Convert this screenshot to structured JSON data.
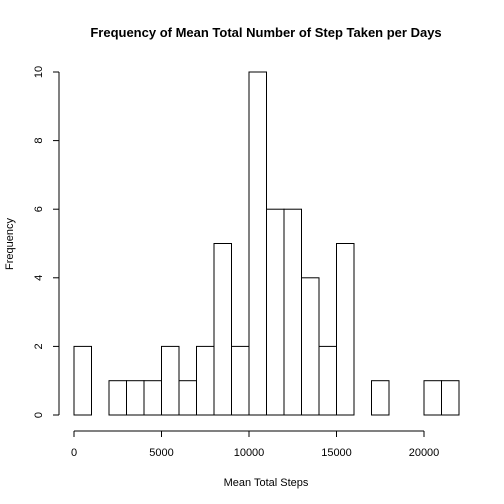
{
  "chart_data": {
    "type": "bar",
    "title": "Frequency of Mean Total Number of Step Taken per Days",
    "xlabel": "Mean Total Steps",
    "ylabel": "Frequency",
    "bin_width": 1000,
    "bins": [
      {
        "x0": 0,
        "x1": 1000,
        "count": 2
      },
      {
        "x0": 1000,
        "x1": 2000,
        "count": 0
      },
      {
        "x0": 2000,
        "x1": 3000,
        "count": 1
      },
      {
        "x0": 3000,
        "x1": 4000,
        "count": 1
      },
      {
        "x0": 4000,
        "x1": 5000,
        "count": 1
      },
      {
        "x0": 5000,
        "x1": 6000,
        "count": 2
      },
      {
        "x0": 6000,
        "x1": 7000,
        "count": 1
      },
      {
        "x0": 7000,
        "x1": 8000,
        "count": 2
      },
      {
        "x0": 8000,
        "x1": 9000,
        "count": 5
      },
      {
        "x0": 9000,
        "x1": 10000,
        "count": 2
      },
      {
        "x0": 10000,
        "x1": 11000,
        "count": 10
      },
      {
        "x0": 11000,
        "x1": 12000,
        "count": 6
      },
      {
        "x0": 12000,
        "x1": 13000,
        "count": 6
      },
      {
        "x0": 13000,
        "x1": 14000,
        "count": 4
      },
      {
        "x0": 14000,
        "x1": 15000,
        "count": 2
      },
      {
        "x0": 15000,
        "x1": 16000,
        "count": 5
      },
      {
        "x0": 16000,
        "x1": 17000,
        "count": 0
      },
      {
        "x0": 17000,
        "x1": 18000,
        "count": 1
      },
      {
        "x0": 18000,
        "x1": 19000,
        "count": 0
      },
      {
        "x0": 19000,
        "x1": 20000,
        "count": 0
      },
      {
        "x0": 20000,
        "x1": 21000,
        "count": 1
      },
      {
        "x0": 21000,
        "x1": 22000,
        "count": 1
      }
    ],
    "xticks": [
      0,
      5000,
      10000,
      15000,
      20000
    ],
    "xtick_labels": [
      "0",
      "5000",
      "10000",
      "15000",
      "20000"
    ],
    "yticks": [
      0,
      2,
      4,
      6,
      8,
      10
    ],
    "ytick_labels": [
      "0",
      "2",
      "4",
      "6",
      "8",
      "10"
    ],
    "xlim": [
      0,
      22000
    ],
    "ylim": [
      0,
      10
    ],
    "grid": false,
    "legend": "none",
    "colors": {
      "bar_fill": "#ffffff",
      "bar_stroke": "#000000"
    }
  }
}
